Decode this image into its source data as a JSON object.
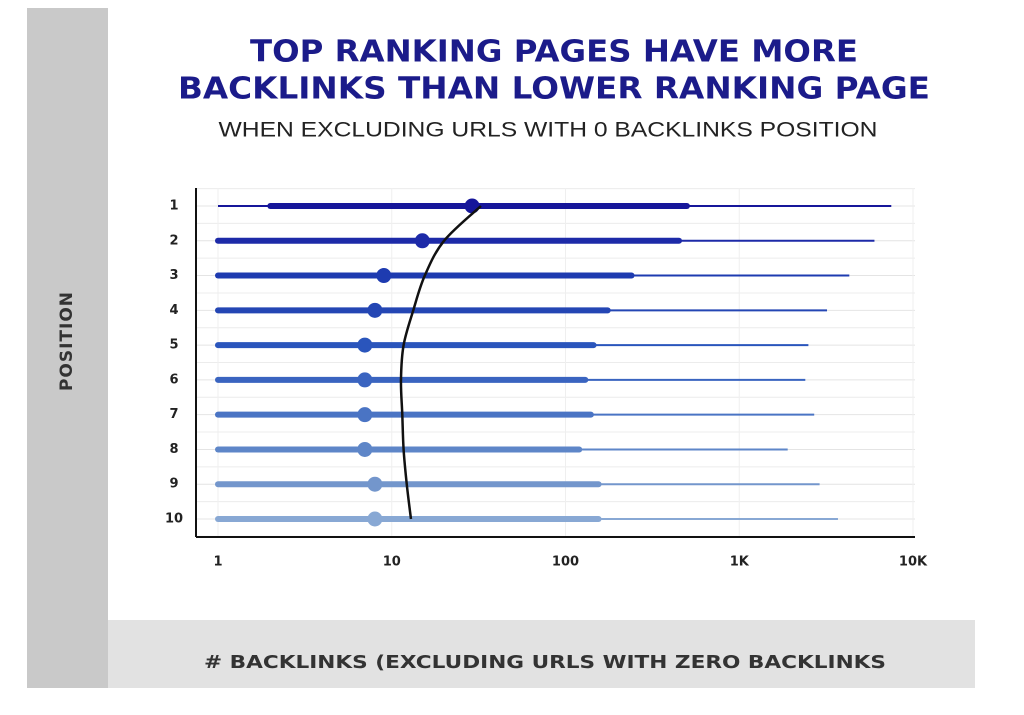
{
  "chart_data": {
    "type": "range",
    "title": [
      "TOP RANKING PAGES HAVE MORE",
      "BACKLINKS THAN LOWER RANKING PAGE"
    ],
    "subtitle": "WHEN EXCLUDING URLS WITH 0 BACKLINKS POSITION",
    "y_label": "POSITION",
    "x_label": "# BACKLINKS (EXCLUDING URLS WITH ZERO BACKLINKS",
    "categories": [
      "1",
      "2",
      "3",
      "4",
      "5",
      "6",
      "7",
      "8",
      "9",
      "10"
    ],
    "min": [
      1,
      1,
      1,
      1,
      1,
      1,
      1,
      1,
      1,
      1
    ],
    "q1": [
      2,
      1,
      1,
      1,
      1,
      1,
      1,
      1,
      1,
      1
    ],
    "median": [
      29,
      15,
      9,
      8,
      7,
      7,
      7,
      7,
      8,
      8
    ],
    "q3": [
      500,
      450,
      240,
      175,
      145,
      130,
      140,
      120,
      155,
      155
    ],
    "max": [
      7500,
      6000,
      4300,
      3200,
      2500,
      2400,
      2700,
      1900,
      2900,
      3700
    ],
    "trend": [
      32.6,
      20,
      15.5,
      13.3,
      11.7,
      11.3,
      11.5,
      11.7,
      12.2,
      12.9
    ],
    "trend_color": "#111111",
    "colors": [
      "#16169a",
      "#1d2aa8",
      "#1e3bb0",
      "#2446b4",
      "#2a55bc",
      "#3a64c0",
      "#4a74c4",
      "#5e86c8",
      "#7396cc",
      "#88a8d4"
    ],
    "log_x": true,
    "xlim": [
      1,
      10000
    ],
    "xticks": [
      1,
      10,
      100,
      {
        "value": 1000,
        "label": "1K"
      },
      {
        "value": 10000,
        "label": "10K"
      }
    ],
    "grid": true
  }
}
